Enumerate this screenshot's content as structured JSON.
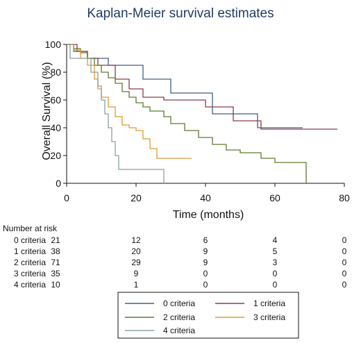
{
  "chart_data": {
    "type": "line",
    "title": "Kaplan-Meier survival estimates",
    "xlabel": "Time (months)",
    "ylabel": "Overall Survival (%)",
    "xlim": [
      0,
      80
    ],
    "ylim": [
      0,
      100
    ],
    "x_ticks": [
      "0",
      "20",
      "40",
      "60",
      "80"
    ],
    "y_ticks": [
      "0",
      "20",
      "40",
      "60",
      "80",
      "100"
    ],
    "grid": false,
    "legend_position": "bottom",
    "series": [
      {
        "name": "0 criteria",
        "color": "#3f5f86",
        "steps": [
          [
            0,
            100
          ],
          [
            2,
            95
          ],
          [
            6,
            90
          ],
          [
            12,
            85
          ],
          [
            22,
            75
          ],
          [
            30,
            65
          ],
          [
            42,
            50
          ],
          [
            55,
            40
          ],
          [
            68,
            40
          ]
        ]
      },
      {
        "name": "1 criteria",
        "color": "#8e3a49",
        "steps": [
          [
            0,
            100
          ],
          [
            3,
            95
          ],
          [
            6,
            90
          ],
          [
            9,
            85
          ],
          [
            14,
            75
          ],
          [
            18,
            68
          ],
          [
            22,
            62
          ],
          [
            28,
            60
          ],
          [
            40,
            55
          ],
          [
            48,
            45
          ],
          [
            56,
            39
          ],
          [
            78,
            39
          ]
        ]
      },
      {
        "name": "2 criteria",
        "color": "#5e7a2c",
        "steps": [
          [
            0,
            100
          ],
          [
            2,
            97
          ],
          [
            4,
            94
          ],
          [
            6,
            90
          ],
          [
            8,
            85
          ],
          [
            10,
            80
          ],
          [
            12,
            76
          ],
          [
            14,
            72
          ],
          [
            16,
            66
          ],
          [
            18,
            62
          ],
          [
            20,
            58
          ],
          [
            22,
            55
          ],
          [
            24,
            52
          ],
          [
            28,
            48
          ],
          [
            30,
            43
          ],
          [
            34,
            38
          ],
          [
            38,
            33
          ],
          [
            42,
            28
          ],
          [
            46,
            24
          ],
          [
            50,
            22
          ],
          [
            56,
            18
          ],
          [
            60,
            15
          ],
          [
            68,
            15
          ],
          [
            69,
            0
          ]
        ]
      },
      {
        "name": "3 criteria",
        "color": "#e29a2e",
        "steps": [
          [
            0,
            100
          ],
          [
            2,
            96
          ],
          [
            4,
            90
          ],
          [
            6,
            85
          ],
          [
            8,
            75
          ],
          [
            9,
            68
          ],
          [
            10,
            62
          ],
          [
            12,
            55
          ],
          [
            14,
            48
          ],
          [
            16,
            42
          ],
          [
            18,
            40
          ],
          [
            20,
            38
          ],
          [
            22,
            32
          ],
          [
            24,
            25
          ],
          [
            26,
            18
          ],
          [
            36,
            18
          ]
        ]
      },
      {
        "name": "4 criteria",
        "color": "#8aa29a",
        "steps": [
          [
            0,
            100
          ],
          [
            1,
            90
          ],
          [
            7,
            80
          ],
          [
            9,
            70
          ],
          [
            10,
            60
          ],
          [
            11,
            50
          ],
          [
            12,
            40
          ],
          [
            13,
            30
          ],
          [
            14,
            20
          ],
          [
            15,
            10
          ],
          [
            28,
            10
          ],
          [
            28,
            0
          ]
        ]
      }
    ],
    "risk_table": {
      "header": "Number at risk",
      "times": [
        0,
        20,
        40,
        60,
        80
      ],
      "rows": [
        {
          "label": "0 criteria",
          "values": [
            "21",
            "12",
            "6",
            "4",
            "0"
          ]
        },
        {
          "label": "1 criteria",
          "values": [
            "38",
            "20",
            "9",
            "5",
            "0"
          ]
        },
        {
          "label": "2 criteria",
          "values": [
            "71",
            "29",
            "9",
            "3",
            "0"
          ]
        },
        {
          "label": "3 criteria",
          "values": [
            "35",
            "9",
            "0",
            "0",
            "0"
          ]
        },
        {
          "label": "4 criteria",
          "values": [
            "10",
            "1",
            "0",
            "0",
            "0"
          ]
        }
      ]
    }
  }
}
